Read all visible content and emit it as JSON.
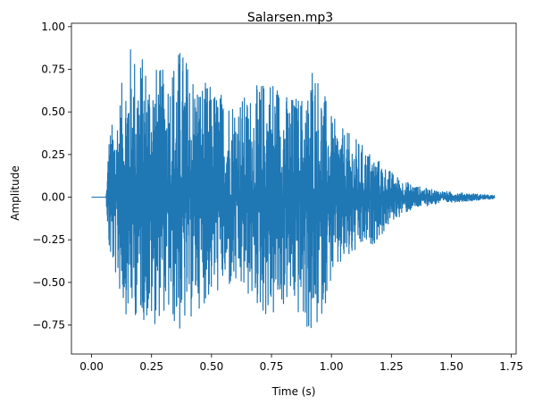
{
  "chart_data": {
    "type": "line",
    "title": "Salarsen.mp3",
    "xlabel": "Time (s)",
    "ylabel": "Amplitude",
    "xlim": [
      -0.084,
      1.77
    ],
    "ylim": [
      -0.92,
      1.02
    ],
    "xticks": [
      "0.00",
      "0.25",
      "0.50",
      "0.75",
      "1.00",
      "1.25",
      "1.50",
      "1.75"
    ],
    "yticks": [
      "−0.75",
      "−0.50",
      "−0.25",
      "0.00",
      "0.25",
      "0.50",
      "0.75",
      "1.00"
    ],
    "grid": false,
    "legend": "none",
    "series": [
      {
        "color": "#1f77b4",
        "envelope": {
          "t": [
            0.0,
            0.06,
            0.065,
            0.07,
            0.08,
            0.1,
            0.13,
            0.155,
            0.2,
            0.25,
            0.3,
            0.37,
            0.45,
            0.55,
            0.65,
            0.75,
            0.82,
            0.9,
            0.92,
            1.0,
            1.05,
            1.1,
            1.2,
            1.25,
            1.3,
            1.35,
            1.4,
            1.5,
            1.6,
            1.68
          ],
          "upper": [
            0.0,
            0.0,
            0.12,
            0.37,
            0.42,
            0.5,
            0.7,
            0.92,
            0.85,
            0.8,
            0.75,
            0.9,
            0.7,
            0.62,
            0.6,
            0.75,
            0.6,
            0.62,
            0.85,
            0.48,
            0.4,
            0.35,
            0.22,
            0.15,
            0.1,
            0.07,
            0.05,
            0.03,
            0.02,
            0.01
          ],
          "lower": [
            0.0,
            0.0,
            -0.12,
            -0.35,
            -0.4,
            -0.48,
            -0.65,
            -0.72,
            -0.7,
            -0.78,
            -0.68,
            -0.82,
            -0.65,
            -0.55,
            -0.6,
            -0.75,
            -0.63,
            -0.8,
            -0.9,
            -0.5,
            -0.42,
            -0.35,
            -0.25,
            -0.15,
            -0.1,
            -0.07,
            -0.05,
            -0.03,
            -0.02,
            -0.01
          ]
        }
      }
    ]
  }
}
